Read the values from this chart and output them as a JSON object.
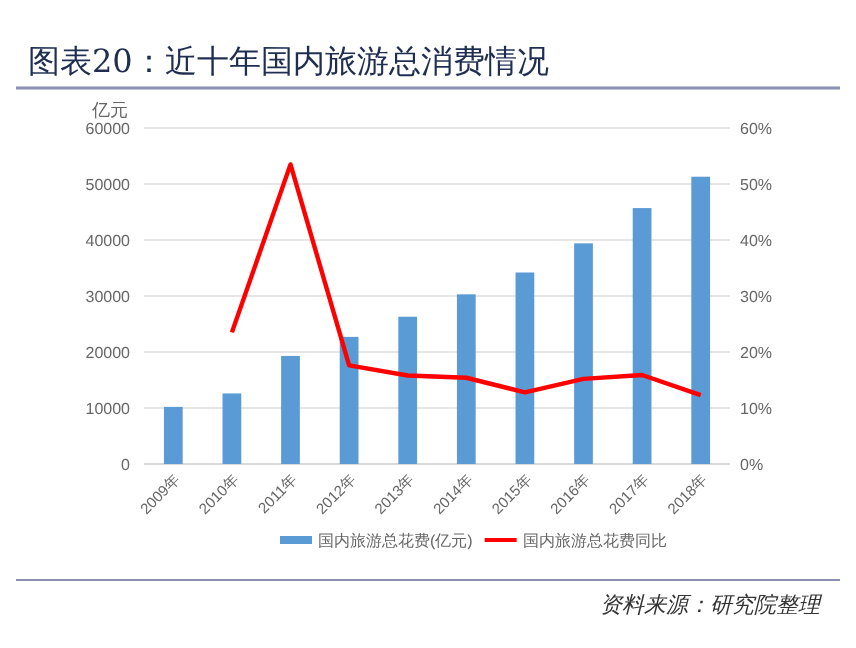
{
  "chart_data": {
    "type": "bar",
    "title": "图表20：近十年国内旅游总消费情况",
    "ylabel": "亿元",
    "categories": [
      "2009年",
      "2010年",
      "2011年",
      "2012年",
      "2013年",
      "2014年",
      "2015年",
      "2016年",
      "2017年",
      "2018年"
    ],
    "series": [
      {
        "name": "国内旅游总花费(亿元)",
        "color": "#5b9bd5",
        "values": [
          10200,
          12600,
          19300,
          22700,
          26300,
          30300,
          34200,
          39400,
          45700,
          51300
        ]
      },
      {
        "name": "国内旅游总花费同比",
        "type": "line",
        "axis": "y2",
        "color": "#ff0000",
        "values": [
          null,
          23.5,
          53.5,
          17.6,
          15.8,
          15.4,
          12.8,
          15.2,
          15.9,
          12.3
        ]
      }
    ],
    "ylim": [
      0,
      60000
    ],
    "yticks": [
      0,
      10000,
      20000,
      30000,
      40000,
      50000,
      60000
    ],
    "y2lim": [
      0,
      60
    ],
    "y2ticks": [
      {
        "value": 0,
        "label": "0%"
      },
      {
        "value": 10,
        "label": "10%"
      },
      {
        "value": 20,
        "label": "20%"
      },
      {
        "value": 30,
        "label": "30%"
      },
      {
        "value": 40,
        "label": "40%"
      },
      {
        "value": 50,
        "label": "50%"
      },
      {
        "value": 60,
        "label": "60%"
      }
    ],
    "grid": "y",
    "legend": "bottom",
    "annotations": [
      "资料来源：研究院整理"
    ]
  }
}
